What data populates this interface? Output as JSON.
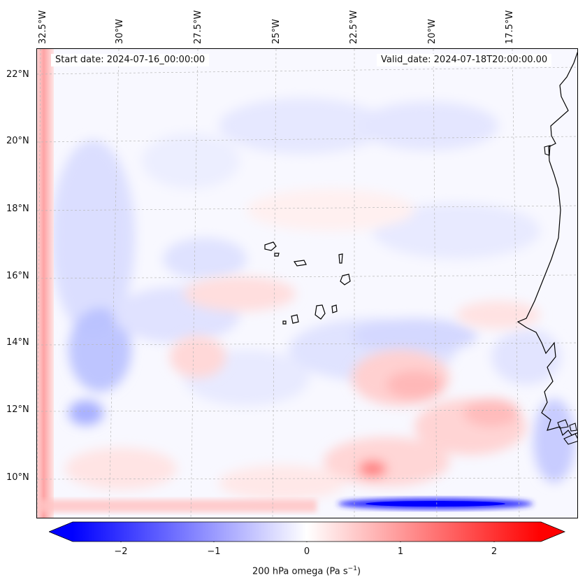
{
  "map": {
    "start_date": "Start date: 2024-07-16_00:00:00",
    "valid_date": "Valid_date: 2024-07-18T20:00:00.00",
    "lat_labels": [
      "22°N",
      "20°N",
      "18°N",
      "16°N",
      "14°N",
      "12°N",
      "10°N"
    ],
    "lon_labels": [
      "32.5°W",
      "30°W",
      "27.5°W",
      "25°W",
      "22.5°W",
      "20°W",
      "17.5°W"
    ],
    "colormap": [
      "#0000ff",
      "#ffffff",
      "#ff0000"
    ],
    "coastline_color": "#000000"
  },
  "colorbar": {
    "ticks": [
      "−2",
      "−1",
      "0",
      "1",
      "2"
    ],
    "range": [
      -2.75,
      2.75
    ],
    "label_main": "200 hPa omega (Pa s",
    "label_sup": "−1",
    "label_end": ")"
  }
}
